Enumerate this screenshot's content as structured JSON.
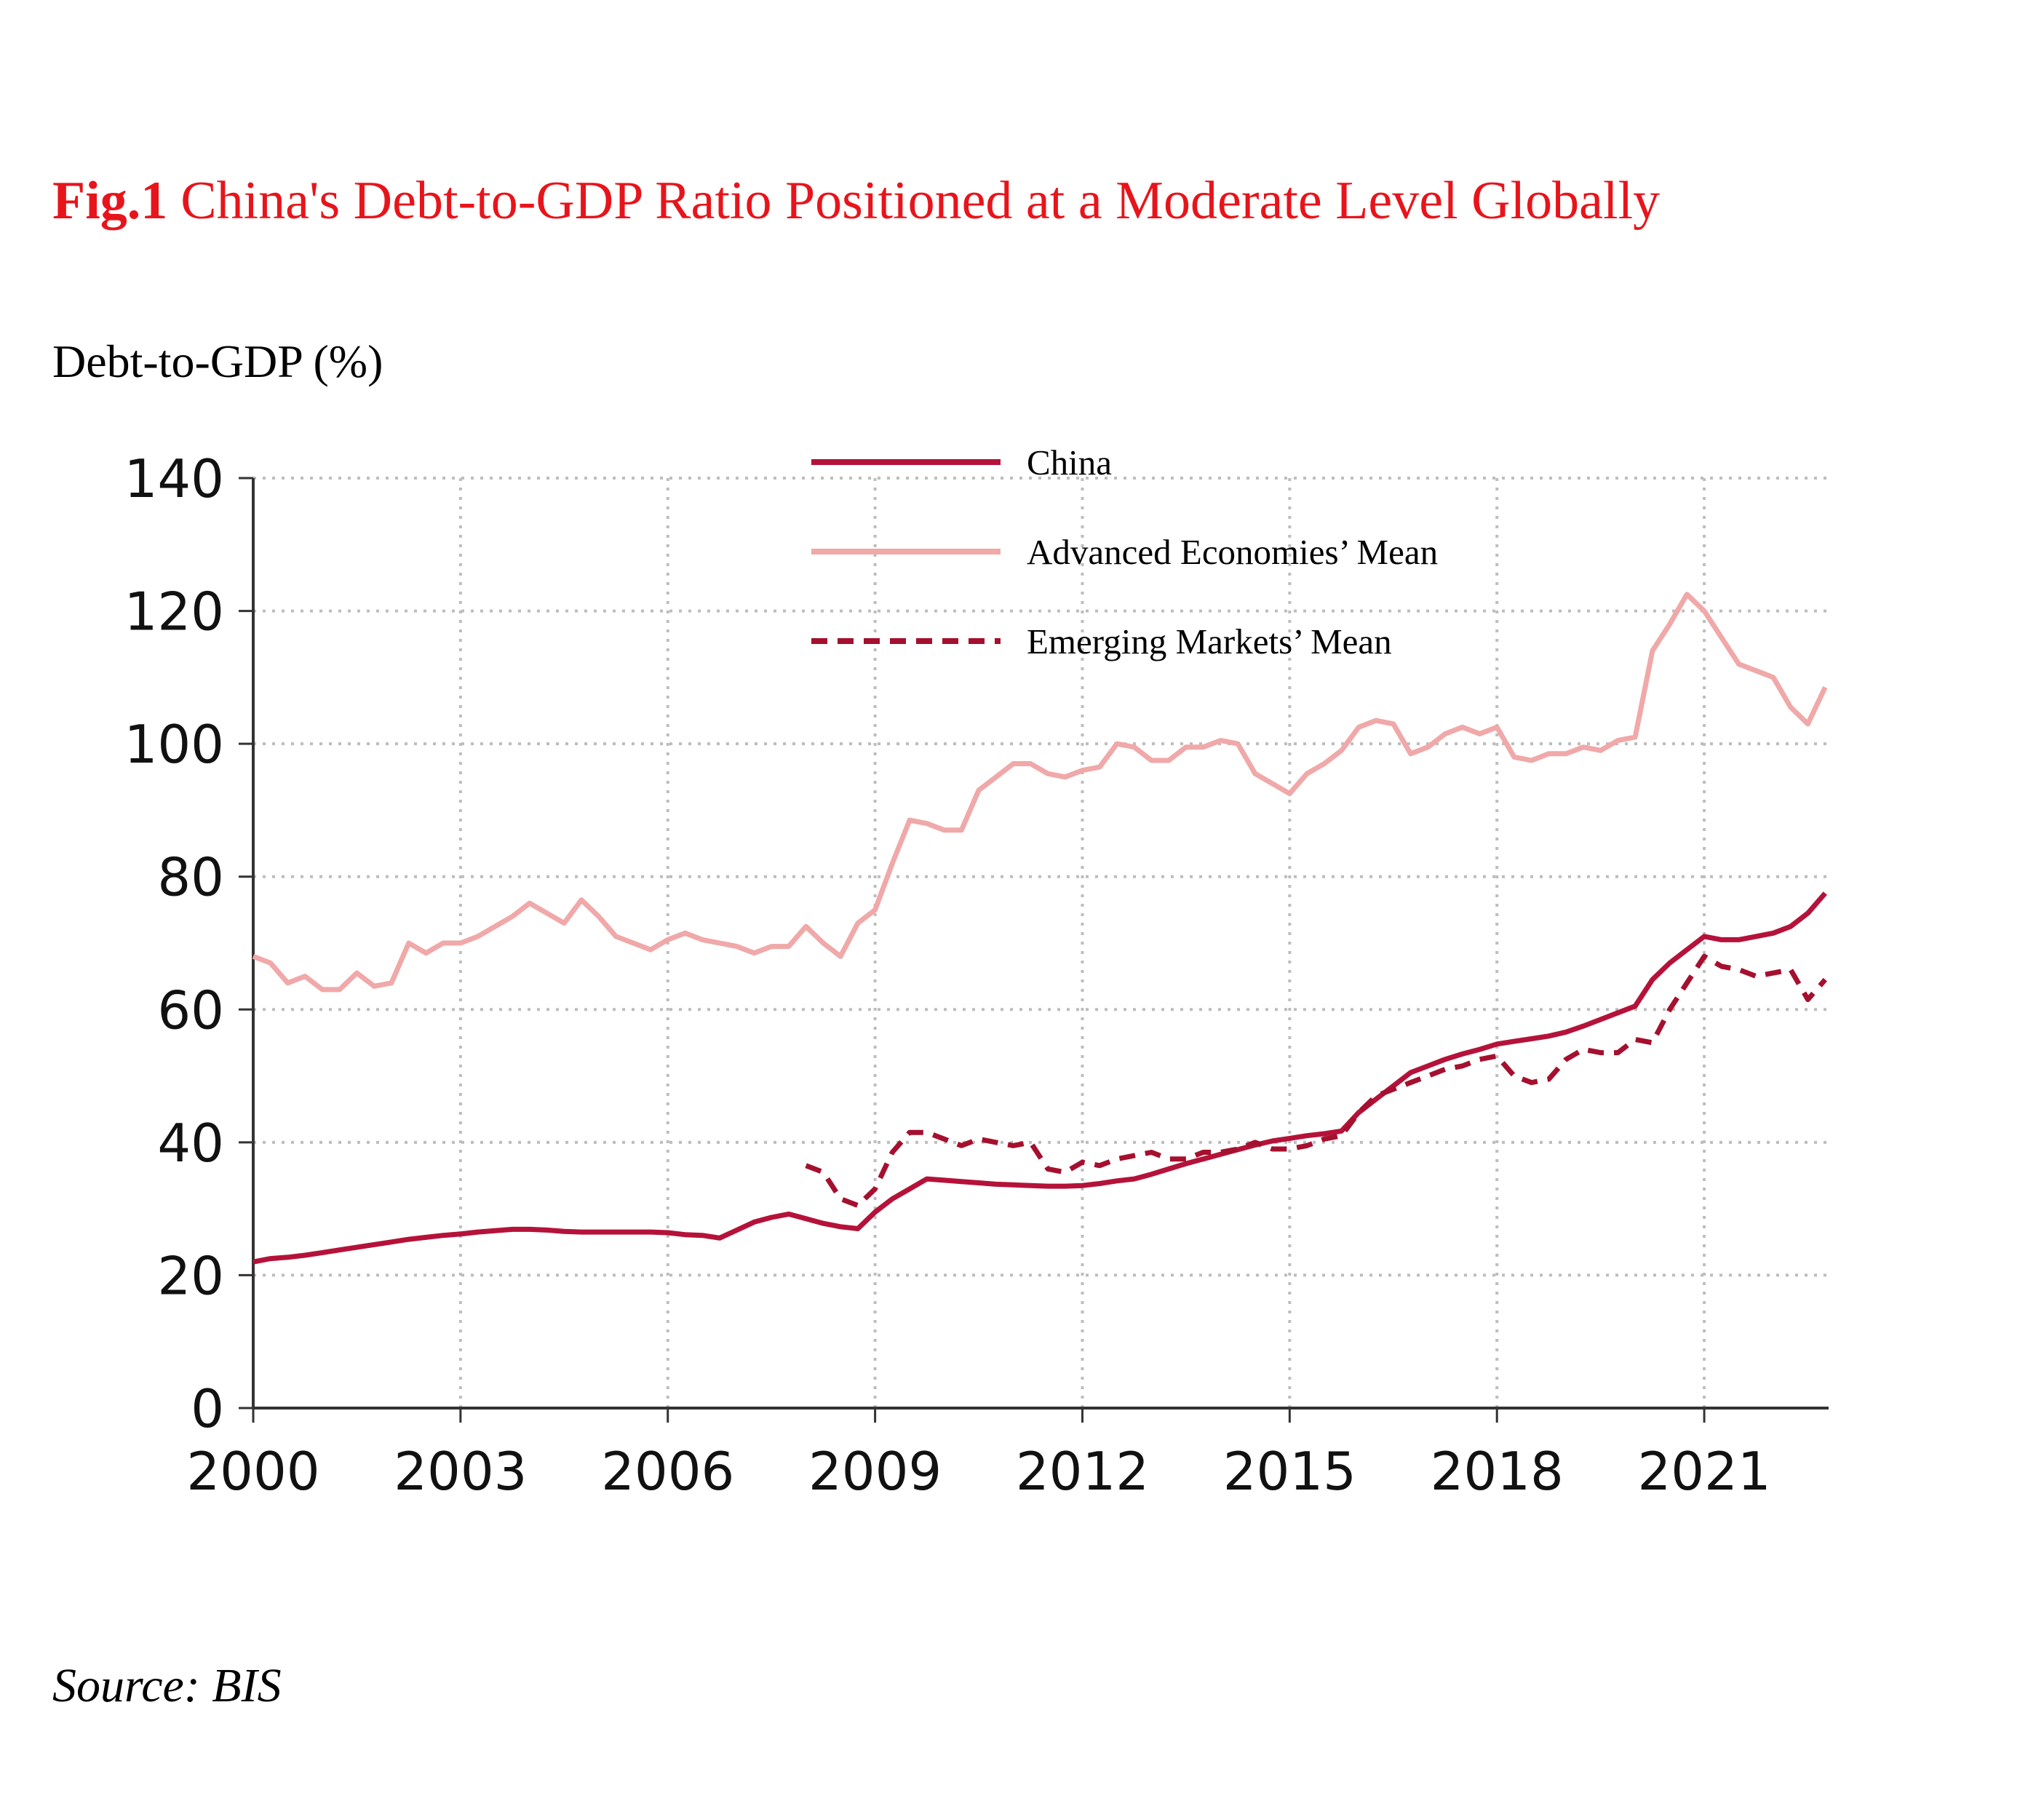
{
  "chart_data": {
    "type": "line",
    "title_prefix": "Fig.1",
    "title": "China's Debt-to-GDP Ratio Positioned at a Moderate Level Globally",
    "y_label": "Debt-to-GDP (%)",
    "source": "Source: BIS",
    "xlim": [
      2000,
      2022.8
    ],
    "xticks": [
      2000,
      2003,
      2006,
      2009,
      2012,
      2015,
      2018,
      2021
    ],
    "ylim": [
      0,
      140
    ],
    "yticks": [
      0,
      20,
      40,
      60,
      80,
      100,
      120,
      140
    ],
    "grid": true,
    "x": [
      2000,
      2000.25,
      2000.5,
      2000.75,
      2001,
      2001.25,
      2001.5,
      2001.75,
      2002,
      2002.25,
      2002.5,
      2002.75,
      2003,
      2003.25,
      2003.5,
      2003.75,
      2004,
      2004.25,
      2004.5,
      2004.75,
      2005,
      2005.25,
      2005.5,
      2005.75,
      2006,
      2006.25,
      2006.5,
      2006.75,
      2007,
      2007.25,
      2007.5,
      2007.75,
      2008,
      2008.25,
      2008.5,
      2008.75,
      2009,
      2009.25,
      2009.5,
      2009.75,
      2010,
      2010.25,
      2010.5,
      2010.75,
      2011,
      2011.25,
      2011.5,
      2011.75,
      2012,
      2012.25,
      2012.5,
      2012.75,
      2013,
      2013.25,
      2013.5,
      2013.75,
      2014,
      2014.25,
      2014.5,
      2014.75,
      2015,
      2015.25,
      2015.5,
      2015.75,
      2016,
      2016.25,
      2016.5,
      2016.75,
      2017,
      2017.25,
      2017.5,
      2017.75,
      2018,
      2018.25,
      2018.5,
      2018.75,
      2019,
      2019.25,
      2019.5,
      2019.75,
      2020,
      2020.25,
      2020.5,
      2020.75,
      2021,
      2021.25,
      2021.5,
      2021.75,
      2022,
      2022.25,
      2022.5,
      2022.75
    ],
    "series": [
      {
        "name": "China",
        "color": "#b5123a",
        "dash": false,
        "values": [
          22,
          22.5,
          22.7,
          23,
          23.4,
          23.8,
          24.2,
          24.6,
          25,
          25.4,
          25.7,
          26,
          26.2,
          26.5,
          26.7,
          26.9,
          26.9,
          26.8,
          26.6,
          26.5,
          26.5,
          26.5,
          26.5,
          26.5,
          26.4,
          26.1,
          26,
          25.6,
          26.8,
          28,
          28.7,
          29.2,
          28.5,
          27.8,
          27.3,
          27,
          29.5,
          31.5,
          33,
          34.5,
          34.3,
          34.1,
          33.9,
          33.7,
          33.6,
          33.5,
          33.4,
          33.4,
          33.5,
          33.8,
          34.2,
          34.5,
          35.2,
          36,
          36.8,
          37.5,
          38.2,
          38.9,
          39.6,
          40.2,
          40.6,
          41,
          41.3,
          41.7,
          44.5,
          46.5,
          48.5,
          50.5,
          51.5,
          52.5,
          53.3,
          54,
          54.8,
          55.2,
          55.6,
          56,
          56.6,
          57.5,
          58.5,
          59.5,
          60.5,
          64.5,
          67,
          69,
          71,
          70.5,
          70.5,
          71,
          71.5,
          72.5,
          74.5,
          77.5
        ]
      },
      {
        "name": "Advanced Economies’ Mean",
        "color": "#f0a8a8",
        "dash": false,
        "values": [
          68,
          67,
          64,
          65,
          63,
          63,
          65.5,
          63.5,
          64,
          70,
          68.5,
          70,
          70,
          71,
          72.5,
          74,
          76,
          74.5,
          73,
          76.5,
          74,
          71,
          70,
          69,
          70.5,
          71.5,
          70.5,
          70,
          69.5,
          68.5,
          69.5,
          69.5,
          72.5,
          70,
          68,
          73,
          75,
          82,
          88.5,
          88,
          87,
          87,
          93,
          95,
          97,
          97,
          95.5,
          95,
          96,
          96.5,
          100,
          99.5,
          97.5,
          97.5,
          99.5,
          99.5,
          100.5,
          100,
          95.5,
          94,
          92.5,
          95.5,
          97,
          99,
          102.5,
          103.5,
          103,
          98.5,
          99.5,
          101.5,
          102.5,
          101.5,
          102.5,
          98,
          97.5,
          98.5,
          98.5,
          99.5,
          99,
          100.5,
          101,
          114,
          118,
          122.5,
          120,
          116,
          112,
          111,
          110,
          105.5,
          103,
          108.5
        ]
      },
      {
        "name": "Emerging Markets’ Mean",
        "color": "#a5102e",
        "dash": true,
        "values": [
          null,
          null,
          null,
          null,
          null,
          null,
          null,
          null,
          null,
          null,
          null,
          null,
          null,
          null,
          null,
          null,
          null,
          null,
          null,
          null,
          null,
          null,
          null,
          null,
          null,
          null,
          null,
          null,
          null,
          null,
          null,
          null,
          36.5,
          35.5,
          31.5,
          30.5,
          33,
          38.5,
          41.5,
          41.5,
          40.5,
          39.5,
          40.5,
          40,
          39.5,
          40,
          36,
          35.5,
          37,
          36.5,
          37.5,
          38,
          38.5,
          37.5,
          37.5,
          38.5,
          38.5,
          39,
          40,
          39,
          39,
          39.5,
          40.5,
          41,
          44.5,
          47,
          48,
          49,
          50,
          51,
          51.5,
          52.5,
          53,
          50,
          49,
          49.5,
          52.5,
          54,
          53.5,
          53.5,
          55.5,
          55,
          60,
          64,
          68,
          66.5,
          66,
          65,
          65.5,
          66,
          61.5,
          64.5
        ]
      }
    ]
  }
}
